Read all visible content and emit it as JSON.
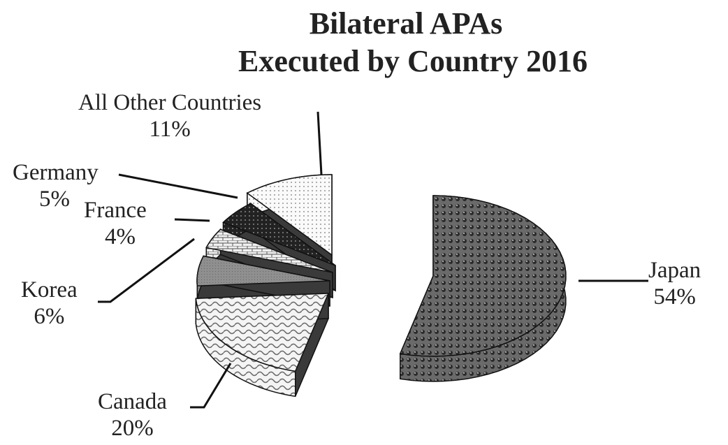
{
  "chart_data": {
    "type": "pie",
    "style": "3d-exploded",
    "title": "Bilateral APAs",
    "subtitle": "Executed by Country 2016",
    "slices": [
      {
        "label": "Japan",
        "value": 54,
        "pct_label": "54%",
        "pattern": "dark-checker-dots",
        "color": "#555555"
      },
      {
        "label": "Canada",
        "value": 20,
        "pct_label": "20%",
        "pattern": "wave",
        "color": "#dddddd"
      },
      {
        "label": "Korea",
        "value": 6,
        "pct_label": "6%",
        "pattern": "solid-grey",
        "color": "#8a8a8a"
      },
      {
        "label": "France",
        "value": 4,
        "pct_label": "4%",
        "pattern": "brick",
        "color": "#e8e8e8"
      },
      {
        "label": "Germany",
        "value": 5,
        "pct_label": "5%",
        "pattern": "dark-dots",
        "color": "#2a2a2a"
      },
      {
        "label": "All Other Countries",
        "value": 11,
        "pct_label": "11%",
        "pattern": "light-dots",
        "color": "#f2f2f2"
      }
    ],
    "legend": "none"
  }
}
